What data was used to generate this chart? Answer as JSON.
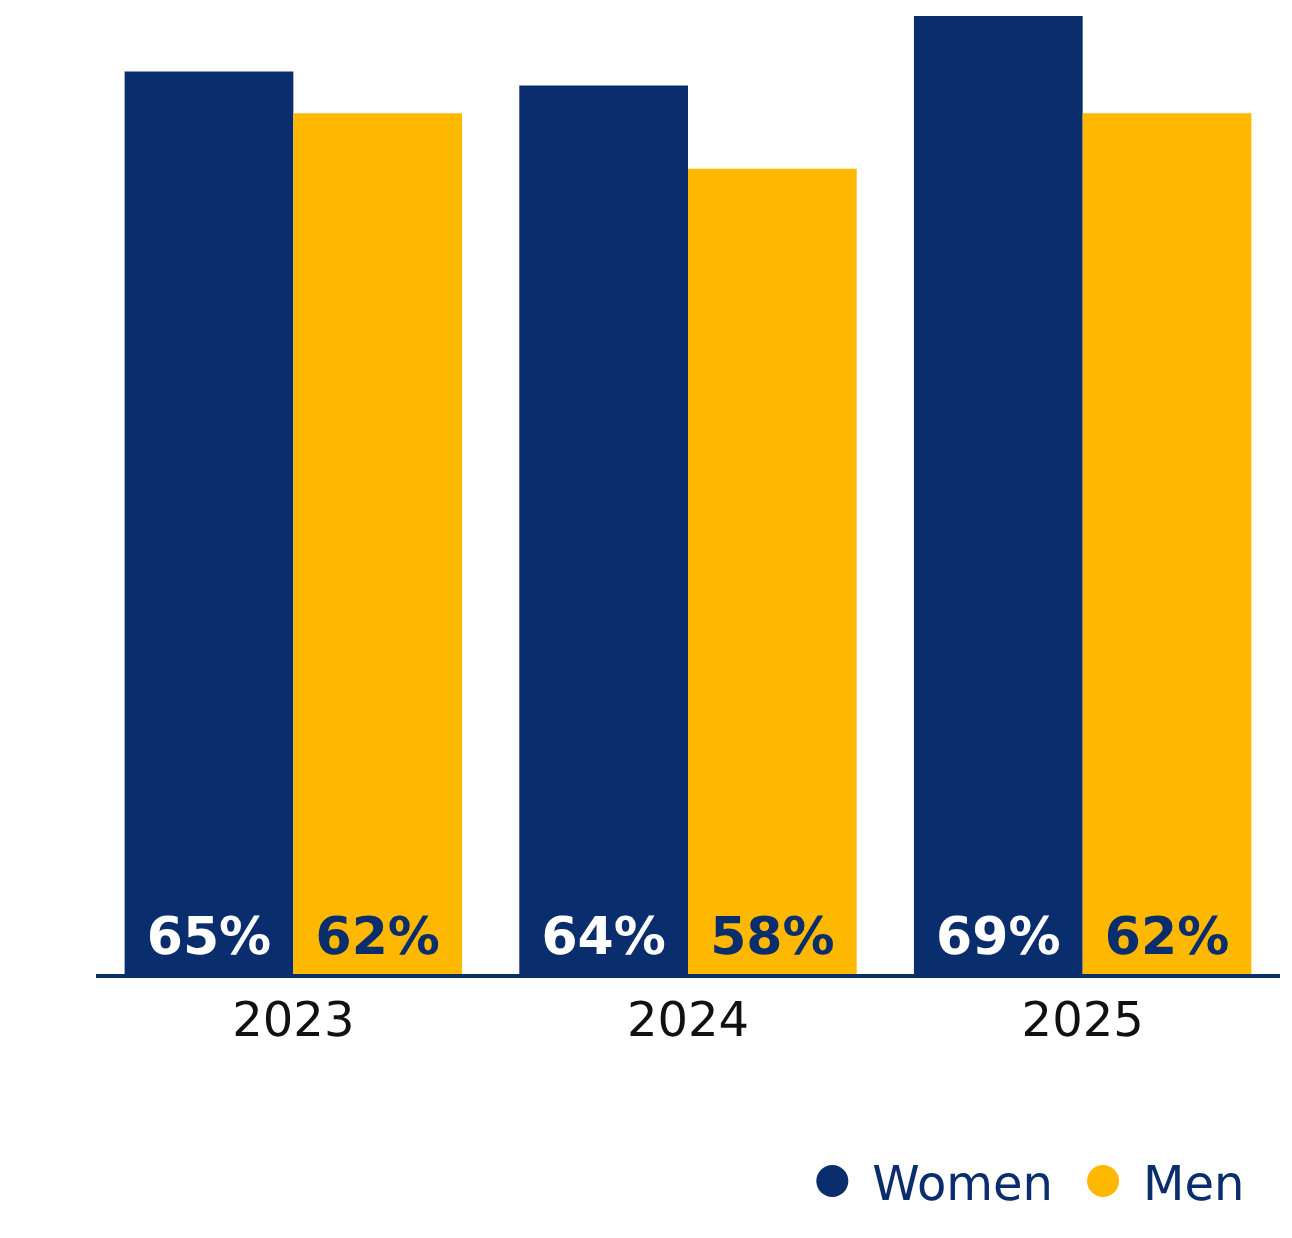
{
  "chart_data": {
    "type": "bar",
    "categories": [
      "2023",
      "2024",
      "2025"
    ],
    "series": [
      {
        "name": "Women",
        "color": "#0a2d6e",
        "values": [
          65,
          64,
          69
        ],
        "value_labels": [
          "65%",
          "64%",
          "69%"
        ]
      },
      {
        "name": "Men",
        "color": "#ffb800",
        "values": [
          62,
          58,
          62
        ],
        "value_labels": [
          "62%",
          "58%",
          "62%"
        ]
      }
    ],
    "legend": "bottom right"
  }
}
